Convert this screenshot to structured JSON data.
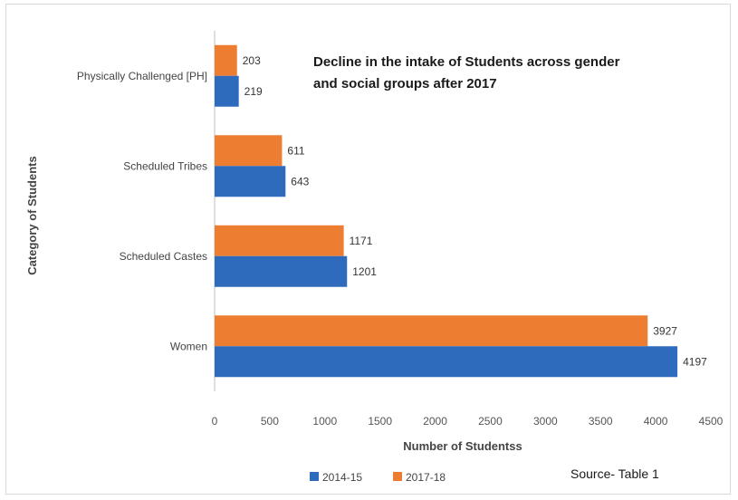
{
  "chart_data": {
    "type": "bar",
    "orientation": "horizontal",
    "title_lines": [
      "Decline in the intake of Students across gender",
      "and social groups after 2017"
    ],
    "xlabel": "Number of Studentss",
    "ylabel": "Category of Students",
    "categories": [
      "Physically Challenged [PH]",
      "Scheduled Tribes",
      "Scheduled Castes",
      "Women"
    ],
    "series": [
      {
        "name": "2017-18",
        "color": "#ed7d31",
        "values": [
          203,
          611,
          1171,
          3927
        ]
      },
      {
        "name": "2014-15",
        "color": "#2e6bbd",
        "values": [
          219,
          643,
          1201,
          4197
        ]
      }
    ],
    "xlim": [
      0,
      4500
    ],
    "xticks": [
      0,
      500,
      1000,
      1500,
      2000,
      2500,
      3000,
      3500,
      4000,
      4500
    ],
    "grid": false,
    "legend_position": "bottom-left",
    "legend_order": [
      "2014-15",
      "2017-18"
    ],
    "source_note": "Source- Table 1"
  }
}
